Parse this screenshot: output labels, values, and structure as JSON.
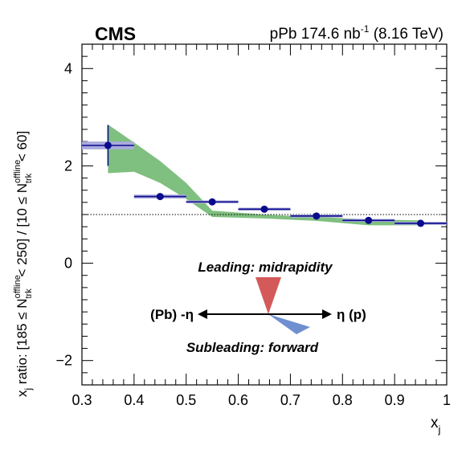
{
  "chart_data": {
    "type": "scatter",
    "experiment_label": "CMS",
    "lumi_label": {
      "system": "pPb",
      "value": "174.6",
      "unit": "nb",
      "unit_exponent": "-1",
      "energy": "(8.16 TeV)"
    },
    "xlabel": {
      "main": "x",
      "sub": "j"
    },
    "ylabel": {
      "p1": "x",
      "p1_sub": "j",
      "p2": " ratio: [185 ≤ N",
      "p2_sup": "offline",
      "p2_sub": "trk",
      "p3": " < 250] / [10 ≤ N",
      "p3_sup": "offline",
      "p3_sub": "trk",
      "p4": " < 60]"
    },
    "xlim": [
      0.3,
      1.0
    ],
    "ylim": [
      -2.5,
      4.5
    ],
    "x_ticks": [
      0.3,
      0.4,
      0.5,
      0.6,
      0.7,
      0.8,
      0.9,
      1.0
    ],
    "x_tick_labels": [
      "0.3",
      "0.4",
      "0.5",
      "0.6",
      "0.7",
      "0.8",
      "0.9",
      "1"
    ],
    "y_ticks": [
      -2,
      0,
      2,
      4
    ],
    "y_tick_labels": [
      "−2",
      "0",
      "2",
      "4"
    ],
    "reference_line_y": 1.0,
    "colors": {
      "points": "#0a0a8c",
      "syst_box": "#aaaadd",
      "band": "#7fbf7f",
      "leading": "#d45a5a",
      "subleading": "#6f8fd0"
    },
    "points": [
      {
        "x": 0.35,
        "y": 2.42,
        "xerr": 0.05,
        "yerr": 0.42,
        "syst": 0.08
      },
      {
        "x": 0.45,
        "y": 1.37,
        "xerr": 0.05,
        "yerr": 0.04,
        "syst": 0.04
      },
      {
        "x": 0.55,
        "y": 1.26,
        "xerr": 0.05,
        "yerr": 0.03,
        "syst": 0.03
      },
      {
        "x": 0.65,
        "y": 1.11,
        "xerr": 0.05,
        "yerr": 0.03,
        "syst": 0.03
      },
      {
        "x": 0.75,
        "y": 0.97,
        "xerr": 0.05,
        "yerr": 0.03,
        "syst": 0.03
      },
      {
        "x": 0.85,
        "y": 0.88,
        "xerr": 0.05,
        "yerr": 0.03,
        "syst": 0.03
      },
      {
        "x": 0.95,
        "y": 0.82,
        "xerr": 0.05,
        "yerr": 0.03,
        "syst": 0.03
      }
    ],
    "model_band": {
      "x": [
        0.35,
        0.4,
        0.45,
        0.5,
        0.55,
        0.65,
        0.75,
        0.85,
        0.95
      ],
      "low": [
        1.85,
        1.88,
        1.65,
        1.32,
        0.95,
        0.92,
        0.87,
        0.78,
        0.78
      ],
      "high": [
        2.85,
        2.48,
        2.1,
        1.65,
        1.08,
        1.0,
        0.95,
        0.9,
        0.88
      ]
    },
    "annotations": {
      "leading": "Leading: midrapidity",
      "subleading": "Subleading: forward",
      "left_direction": "(Pb) -η",
      "right_direction": "η (p)"
    }
  }
}
